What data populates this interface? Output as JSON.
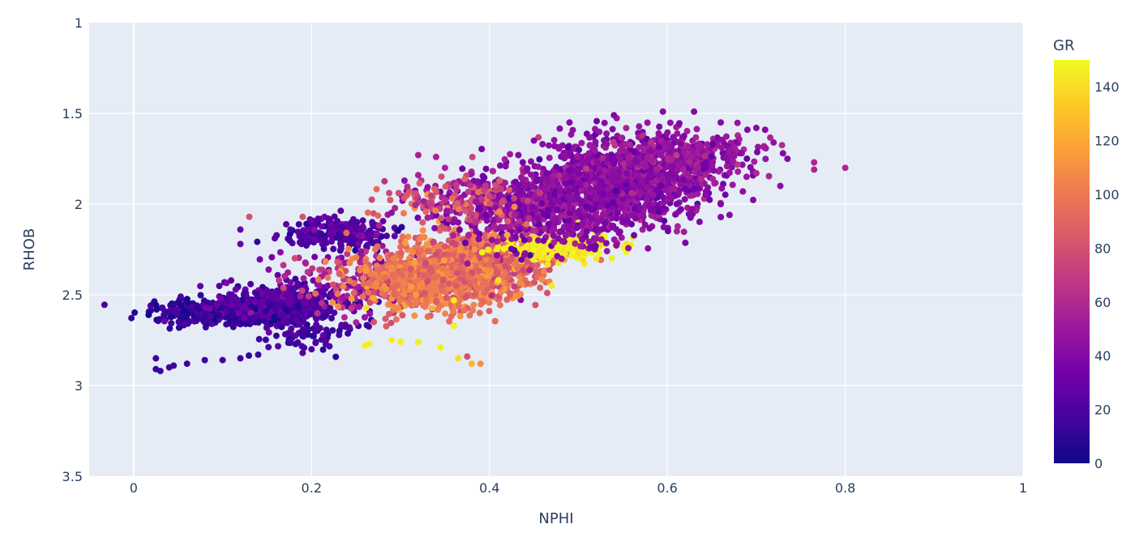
{
  "chart_data": {
    "type": "scatter",
    "title": "",
    "xlabel": "NPHI",
    "ylabel": "RHOB",
    "xlim": [
      -0.05,
      1.0
    ],
    "ylim": [
      1.0,
      3.5
    ],
    "y_reversed": true,
    "x_ticks": [
      "0",
      "0.2",
      "0.4",
      "0.6",
      "0.8",
      "1"
    ],
    "x_tick_values": [
      0,
      0.2,
      0.4,
      0.6,
      0.8,
      1.0
    ],
    "y_ticks": [
      "1",
      "1.5",
      "2",
      "2.5",
      "3",
      "3.5"
    ],
    "y_tick_values": [
      1.0,
      1.5,
      2.0,
      2.5,
      3.0,
      3.5
    ],
    "grid": true,
    "plot_background": "#e5ecf6",
    "colorbar": {
      "title": "GR",
      "range": [
        0,
        150
      ],
      "ticks": [
        "0",
        "20",
        "40",
        "60",
        "80",
        "100",
        "120",
        "140"
      ],
      "tick_values": [
        0,
        20,
        40,
        60,
        80,
        100,
        120,
        140
      ],
      "colorscale": "Plasma",
      "colors": [
        "#0d0887",
        "#46039f",
        "#7201a8",
        "#9c179e",
        "#bd3786",
        "#d8576b",
        "#ed7953",
        "#fb9f3a",
        "#fdca26",
        "#f0f921"
      ]
    },
    "clusters": [
      {
        "x": 0.1,
        "y": 2.6,
        "sx": 0.04,
        "sy": 0.03,
        "c": 12,
        "sc": 6,
        "n": 520
      },
      {
        "x": 0.17,
        "y": 2.54,
        "sx": 0.04,
        "sy": 0.05,
        "c": 22,
        "sc": 8,
        "n": 380
      },
      {
        "x": 0.23,
        "y": 2.16,
        "sx": 0.03,
        "sy": 0.04,
        "c": 22,
        "sc": 8,
        "n": 220
      },
      {
        "x": 0.19,
        "y": 2.68,
        "sx": 0.03,
        "sy": 0.07,
        "c": 18,
        "sc": 6,
        "n": 110
      },
      {
        "x": 0.27,
        "y": 2.42,
        "sx": 0.05,
        "sy": 0.09,
        "c": 55,
        "sc": 14,
        "n": 260
      },
      {
        "x": 0.34,
        "y": 2.4,
        "sx": 0.045,
        "sy": 0.09,
        "c": 100,
        "sc": 10,
        "n": 950
      },
      {
        "x": 0.4,
        "y": 2.3,
        "sx": 0.035,
        "sy": 0.09,
        "c": 92,
        "sc": 12,
        "n": 420
      },
      {
        "x": 0.48,
        "y": 2.23,
        "sx": 0.03,
        "sy": 0.04,
        "c": 145,
        "sc": 4,
        "n": 180
      },
      {
        "x": 0.47,
        "y": 2.0,
        "sx": 0.06,
        "sy": 0.11,
        "c": 44,
        "sc": 9,
        "n": 900
      },
      {
        "x": 0.56,
        "y": 1.85,
        "sx": 0.05,
        "sy": 0.11,
        "c": 42,
        "sc": 8,
        "n": 1000
      },
      {
        "x": 0.62,
        "y": 1.72,
        "sx": 0.04,
        "sy": 0.06,
        "c": 48,
        "sc": 8,
        "n": 260
      },
      {
        "x": 0.36,
        "y": 1.98,
        "sx": 0.04,
        "sy": 0.06,
        "c": 75,
        "sc": 15,
        "n": 140
      }
    ],
    "outliers": [
      {
        "x": 0.025,
        "y": 2.91,
        "c": 14
      },
      {
        "x": 0.03,
        "y": 2.92,
        "c": 14
      },
      {
        "x": 0.04,
        "y": 2.9,
        "c": 14
      },
      {
        "x": 0.045,
        "y": 2.89,
        "c": 14
      },
      {
        "x": 0.06,
        "y": 2.88,
        "c": 14
      },
      {
        "x": 0.08,
        "y": 2.86,
        "c": 14
      },
      {
        "x": 0.1,
        "y": 2.86,
        "c": 14
      },
      {
        "x": 0.12,
        "y": 2.85,
        "c": 14
      },
      {
        "x": 0.025,
        "y": 2.85,
        "c": 14
      },
      {
        "x": 0.14,
        "y": 2.83,
        "c": 14
      },
      {
        "x": 0.19,
        "y": 2.82,
        "c": 20
      },
      {
        "x": 0.2,
        "y": 2.8,
        "c": 20
      },
      {
        "x": 0.265,
        "y": 2.77,
        "c": 146
      },
      {
        "x": 0.26,
        "y": 2.78,
        "c": 146
      },
      {
        "x": 0.29,
        "y": 2.75,
        "c": 146
      },
      {
        "x": 0.3,
        "y": 2.76,
        "c": 146
      },
      {
        "x": 0.32,
        "y": 2.76,
        "c": 146
      },
      {
        "x": 0.345,
        "y": 2.79,
        "c": 146
      },
      {
        "x": 0.36,
        "y": 2.67,
        "c": 146
      },
      {
        "x": 0.365,
        "y": 2.85,
        "c": 140
      },
      {
        "x": 0.375,
        "y": 2.84,
        "c": 80
      },
      {
        "x": 0.38,
        "y": 2.88,
        "c": 125
      },
      {
        "x": 0.39,
        "y": 2.88,
        "c": 110
      },
      {
        "x": 0.27,
        "y": 2.65,
        "c": 80
      },
      {
        "x": 0.63,
        "y": 1.49,
        "c": 40
      },
      {
        "x": 0.66,
        "y": 1.55,
        "c": 40
      },
      {
        "x": 0.69,
        "y": 1.59,
        "c": 40
      },
      {
        "x": 0.7,
        "y": 1.58,
        "c": 40
      },
      {
        "x": 0.71,
        "y": 1.59,
        "c": 40
      },
      {
        "x": 0.73,
        "y": 1.72,
        "c": 40
      },
      {
        "x": 0.735,
        "y": 1.75,
        "c": 40
      },
      {
        "x": 0.765,
        "y": 1.77,
        "c": 58
      },
      {
        "x": 0.765,
        "y": 1.81,
        "c": 58
      },
      {
        "x": 0.8,
        "y": 1.8,
        "c": 58
      },
      {
        "x": 0.7,
        "y": 1.83,
        "c": 58
      },
      {
        "x": 0.67,
        "y": 2.06,
        "c": 40
      },
      {
        "x": 0.66,
        "y": 2.0,
        "c": 40
      },
      {
        "x": 0.595,
        "y": 1.49,
        "c": 40
      },
      {
        "x": 0.54,
        "y": 1.51,
        "c": 40
      },
      {
        "x": 0.49,
        "y": 1.55,
        "c": 40
      },
      {
        "x": 0.45,
        "y": 1.65,
        "c": 40
      },
      {
        "x": 0.32,
        "y": 1.73,
        "c": 55
      },
      {
        "x": 0.34,
        "y": 1.74,
        "c": 55
      },
      {
        "x": 0.35,
        "y": 1.8,
        "c": 55
      },
      {
        "x": 0.32,
        "y": 1.84,
        "c": 55
      },
      {
        "x": 0.13,
        "y": 2.07,
        "c": 80
      },
      {
        "x": 0.19,
        "y": 2.07,
        "c": 80
      },
      {
        "x": 0.12,
        "y": 2.14,
        "c": 30
      },
      {
        "x": 0.12,
        "y": 2.22,
        "c": 30
      },
      {
        "x": 0.42,
        "y": 2.17,
        "c": 120
      },
      {
        "x": 0.41,
        "y": 2.42,
        "c": 140
      },
      {
        "x": 0.47,
        "y": 2.45,
        "c": 145
      },
      {
        "x": 0.36,
        "y": 2.53,
        "c": 146
      }
    ]
  }
}
